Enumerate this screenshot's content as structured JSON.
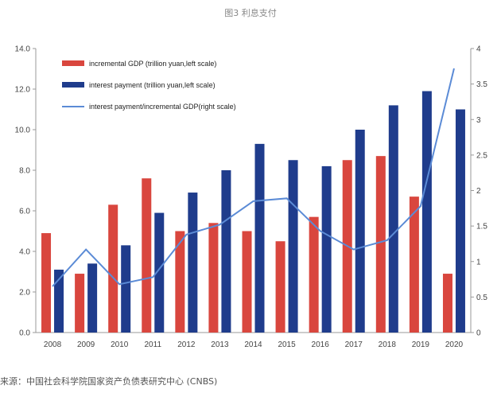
{
  "figure_title": "图3 利息支付",
  "source": "来源：中国社会科学院国家资产负债表研究中心 (CNBS)",
  "chart_data": {
    "type": "bar",
    "categories": [
      "2008",
      "2009",
      "2010",
      "2011",
      "2012",
      "2013",
      "2014",
      "2015",
      "2016",
      "2017",
      "2018",
      "2019",
      "2020"
    ],
    "series": [
      {
        "name": "incremental GDP (trillion yuan,left scale)",
        "type": "bar",
        "axis": "left",
        "color": "#d9463e",
        "values": [
          4.9,
          2.9,
          6.3,
          7.6,
          5.0,
          5.4,
          5.0,
          4.5,
          5.7,
          8.5,
          8.7,
          6.7,
          2.9
        ]
      },
      {
        "name": "interest payment (trillion yuan,left scale)",
        "type": "bar",
        "axis": "left",
        "color": "#1f3c8c",
        "values": [
          3.1,
          3.4,
          4.3,
          5.9,
          6.9,
          8.0,
          9.3,
          8.5,
          8.2,
          10.0,
          11.2,
          11.9,
          11.0
        ]
      },
      {
        "name": "interest payment/incremental GDP(right scale)",
        "type": "line",
        "axis": "right",
        "color": "#5b8bd6",
        "values": [
          0.65,
          1.17,
          0.68,
          0.78,
          1.38,
          1.52,
          1.85,
          1.89,
          1.43,
          1.17,
          1.3,
          1.78,
          3.72
        ]
      }
    ],
    "y_left": {
      "min": 0,
      "max": 14,
      "ticks": [
        "0.0",
        "2.0",
        "4.0",
        "6.0",
        "8.0",
        "10.0",
        "12.0",
        "14.0"
      ]
    },
    "y_right": {
      "min": 0,
      "max": 4,
      "ticks": [
        "0",
        "0.5",
        "1",
        "1.5",
        "2",
        "2.5",
        "3",
        "3.5",
        "4"
      ]
    },
    "legend_position": "top-left",
    "grid": false
  }
}
